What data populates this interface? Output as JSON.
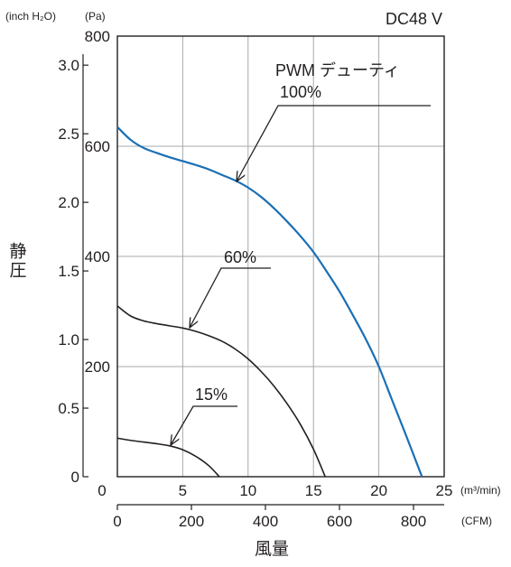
{
  "chart_data": {
    "type": "line",
    "title": "DC48 V",
    "annotation_title": "PWM デューティ",
    "ylabel": "静圧",
    "xlabel": "風量",
    "units": {
      "y_left_outer": "(inch H₂O)",
      "y_left_inner": "(Pa)",
      "x_primary": "(m³/min)",
      "x_secondary": "(CFM)"
    },
    "xlim": [
      0,
      25
    ],
    "ylim": [
      0,
      800
    ],
    "grid": true,
    "y_ticks_pa": [
      "0",
      "200",
      "400",
      "600",
      "800"
    ],
    "y_ticks_inch": [
      "0",
      "0.5",
      "1.0",
      "1.5",
      "2.0",
      "2.5",
      "3.0"
    ],
    "x_ticks_m3": [
      "0",
      "5",
      "10",
      "15",
      "20",
      "25"
    ],
    "x_ticks_cfm": [
      "0",
      "200",
      "400",
      "600",
      "800"
    ],
    "series": [
      {
        "name": "100%",
        "color": "#1a6fb5",
        "x": [
          0,
          1,
          2,
          3,
          4,
          5,
          6,
          7,
          8,
          9,
          10,
          11,
          12,
          13,
          14,
          15,
          16,
          17,
          18,
          19,
          20,
          21,
          22,
          23.3
        ],
        "y": [
          635,
          612,
          597,
          588,
          580,
          573,
          566,
          558,
          548,
          538,
          525,
          508,
          487,
          463,
          437,
          408,
          373,
          336,
          294,
          250,
          200,
          140,
          80,
          0
        ]
      },
      {
        "name": "60%",
        "color": "#231f20",
        "x": [
          0,
          1,
          2,
          3,
          4,
          5,
          6,
          7,
          8,
          9,
          10,
          11,
          12,
          13,
          14,
          15,
          15.9
        ],
        "y": [
          310,
          292,
          283,
          278,
          274,
          270,
          264,
          256,
          246,
          232,
          214,
          191,
          164,
          132,
          95,
          50,
          0
        ]
      },
      {
        "name": "15%",
        "color": "#231f20",
        "x": [
          0,
          1,
          2,
          3,
          4,
          5,
          6,
          7,
          7.8
        ],
        "y": [
          70,
          66,
          63,
          60,
          56,
          49,
          37,
          20,
          0
        ]
      }
    ]
  }
}
